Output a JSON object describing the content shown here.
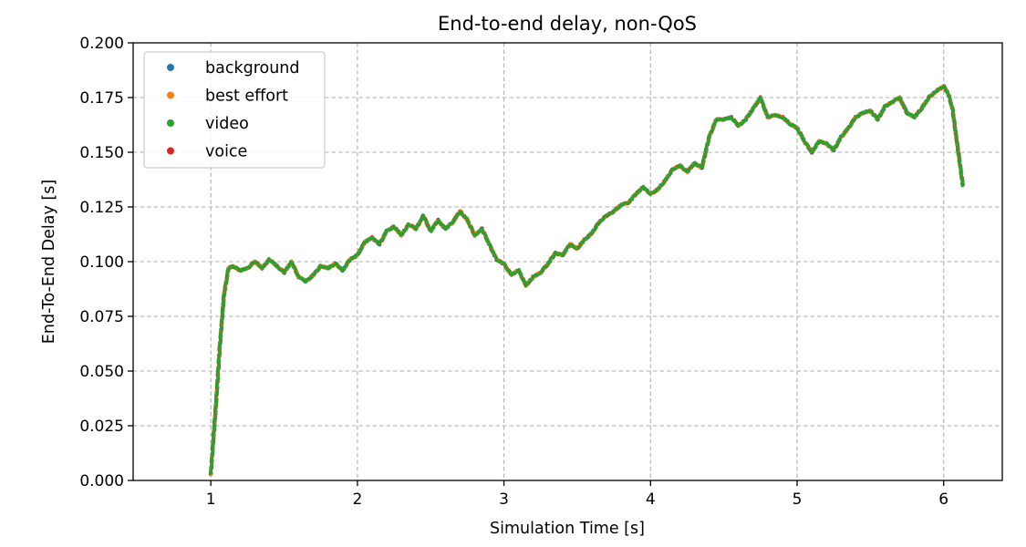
{
  "chart_data": {
    "type": "scatter",
    "title": "End-to-end delay, non-QoS",
    "xlabel": "Simulation Time [s]",
    "ylabel": "End-To-End Delay [s]",
    "xlim": [
      0.47,
      6.4
    ],
    "ylim": [
      0.0,
      0.2
    ],
    "xticks": [
      1,
      2,
      3,
      4,
      5,
      6
    ],
    "xtick_labels": [
      "1",
      "2",
      "3",
      "4",
      "5",
      "6"
    ],
    "yticks": [
      0.0,
      0.025,
      0.05,
      0.075,
      0.1,
      0.125,
      0.15,
      0.175,
      0.2
    ],
    "ytick_labels": [
      "0.000",
      "0.025",
      "0.050",
      "0.075",
      "0.100",
      "0.125",
      "0.150",
      "0.175",
      "0.200"
    ],
    "grid": true,
    "legend_position": "top-left",
    "trace": {
      "x": [
        1.0,
        1.03,
        1.06,
        1.09,
        1.12,
        1.15,
        1.2,
        1.25,
        1.3,
        1.35,
        1.4,
        1.45,
        1.5,
        1.55,
        1.6,
        1.65,
        1.7,
        1.75,
        1.8,
        1.85,
        1.9,
        1.95,
        2.0,
        2.05,
        2.1,
        2.15,
        2.2,
        2.25,
        2.3,
        2.35,
        2.4,
        2.45,
        2.5,
        2.55,
        2.6,
        2.65,
        2.7,
        2.75,
        2.8,
        2.85,
        2.9,
        2.95,
        3.0,
        3.05,
        3.1,
        3.15,
        3.2,
        3.25,
        3.3,
        3.35,
        3.4,
        3.45,
        3.5,
        3.55,
        3.6,
        3.65,
        3.7,
        3.75,
        3.8,
        3.85,
        3.9,
        3.95,
        4.0,
        4.05,
        4.1,
        4.15,
        4.2,
        4.25,
        4.3,
        4.35,
        4.4,
        4.45,
        4.5,
        4.55,
        4.6,
        4.65,
        4.7,
        4.75,
        4.8,
        4.85,
        4.9,
        4.95,
        5.0,
        5.05,
        5.1,
        5.15,
        5.2,
        5.25,
        5.3,
        5.35,
        5.4,
        5.45,
        5.5,
        5.55,
        5.6,
        5.65,
        5.7,
        5.75,
        5.8,
        5.85,
        5.9,
        5.95,
        6.0,
        6.03,
        6.06,
        6.09,
        6.11,
        6.13
      ],
      "y": [
        0.003,
        0.03,
        0.06,
        0.085,
        0.097,
        0.098,
        0.096,
        0.097,
        0.1,
        0.097,
        0.101,
        0.098,
        0.095,
        0.1,
        0.093,
        0.091,
        0.094,
        0.098,
        0.097,
        0.099,
        0.096,
        0.101,
        0.103,
        0.109,
        0.111,
        0.108,
        0.114,
        0.116,
        0.112,
        0.117,
        0.115,
        0.121,
        0.114,
        0.119,
        0.115,
        0.118,
        0.123,
        0.119,
        0.112,
        0.115,
        0.108,
        0.101,
        0.099,
        0.094,
        0.096,
        0.089,
        0.093,
        0.095,
        0.099,
        0.104,
        0.103,
        0.108,
        0.106,
        0.11,
        0.113,
        0.118,
        0.121,
        0.123,
        0.126,
        0.127,
        0.131,
        0.134,
        0.131,
        0.133,
        0.137,
        0.142,
        0.144,
        0.141,
        0.145,
        0.143,
        0.157,
        0.165,
        0.165,
        0.166,
        0.162,
        0.165,
        0.17,
        0.175,
        0.166,
        0.167,
        0.166,
        0.163,
        0.161,
        0.155,
        0.15,
        0.155,
        0.154,
        0.151,
        0.157,
        0.161,
        0.166,
        0.168,
        0.169,
        0.165,
        0.171,
        0.173,
        0.175,
        0.168,
        0.166,
        0.17,
        0.175,
        0.178,
        0.18,
        0.177,
        0.17,
        0.155,
        0.145,
        0.135
      ]
    },
    "series": [
      {
        "name": "background",
        "color": "#1f77b4"
      },
      {
        "name": "best effort",
        "color": "#ff7f0e"
      },
      {
        "name": "video",
        "color": "#2ca02c"
      },
      {
        "name": "voice",
        "color": "#d62728"
      }
    ]
  }
}
